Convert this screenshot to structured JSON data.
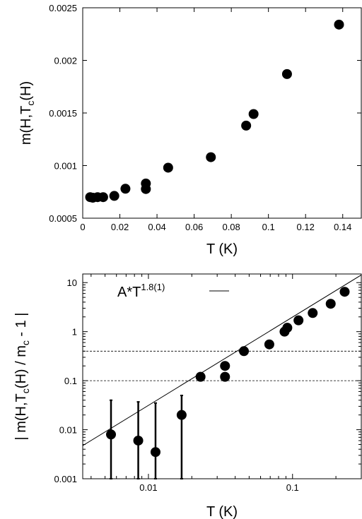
{
  "chart_data": [
    {
      "type": "scatter",
      "xlabel": "T (K)",
      "ylabel": "m(H,T_c(H)",
      "xlim": [
        0,
        0.15
      ],
      "ylim": [
        0.0005,
        0.0025
      ],
      "x_ticks": [
        "0",
        "0.02",
        "0.04",
        "0.06",
        "0.08",
        "0.1",
        "0.12",
        "0.14"
      ],
      "y_ticks": [
        "0.0005",
        "0.001",
        "0.0015",
        "0.002",
        "0.0025"
      ],
      "series": [
        {
          "color": "#000000",
          "points": [
            {
              "x": 0.004,
              "y": 0.0007
            },
            {
              "x": 0.0055,
              "y": 0.000695
            },
            {
              "x": 0.008,
              "y": 0.0007
            },
            {
              "x": 0.011,
              "y": 0.0007
            },
            {
              "x": 0.017,
              "y": 0.000712
            },
            {
              "x": 0.023,
              "y": 0.00078
            },
            {
              "x": 0.034,
              "y": 0.000777
            },
            {
              "x": 0.034,
              "y": 0.00083
            },
            {
              "x": 0.046,
              "y": 0.00098
            },
            {
              "x": 0.069,
              "y": 0.00108
            },
            {
              "x": 0.088,
              "y": 0.00138
            },
            {
              "x": 0.092,
              "y": 0.00149
            },
            {
              "x": 0.11,
              "y": 0.00187
            },
            {
              "x": 0.138,
              "y": 0.00234
            }
          ]
        }
      ]
    },
    {
      "type": "scatter",
      "xlabel": "T (K)",
      "ylabel": "| m(H,T_c(H) / m_c - 1 |",
      "x_scale": "log",
      "y_scale": "log",
      "xlim": [
        0.0035,
        0.3
      ],
      "ylim": [
        0.001,
        15
      ],
      "x_ticks": [
        {
          "value": 0.01,
          "label": "0.01"
        },
        {
          "value": 0.1,
          "label": "0.1"
        }
      ],
      "y_ticks": [
        {
          "value": 0.001,
          "label": "0.001"
        },
        {
          "value": 0.01,
          "label": "0.01"
        },
        {
          "value": 0.1,
          "label": "0.1"
        },
        {
          "value": 1,
          "label": "1"
        },
        {
          "value": 10,
          "label": "10"
        }
      ],
      "legend": {
        "label_base": "A*T",
        "label_exp": "1.8(1)",
        "position": "top-center"
      },
      "fit": {
        "amplitude": 125,
        "exponent": 1.8
      },
      "hlines": [
        0.1,
        0.4
      ],
      "series": [
        {
          "color": "#000000",
          "points": [
            {
              "x": 0.0055,
              "y": 0.008,
              "ylow": 0.001,
              "yhigh": 0.04
            },
            {
              "x": 0.0085,
              "y": 0.006,
              "ylow": 0.001,
              "yhigh": 0.037
            },
            {
              "x": 0.0112,
              "y": 0.0035,
              "ylow": 0.001,
              "yhigh": 0.035
            },
            {
              "x": 0.017,
              "y": 0.02,
              "ylow": 0.001,
              "yhigh": 0.05
            },
            {
              "x": 0.023,
              "y": 0.12,
              "ylow": 0.1,
              "yhigh": 0.145
            },
            {
              "x": 0.034,
              "y": 0.12,
              "ylow": 0.1,
              "yhigh": 0.145
            },
            {
              "x": 0.034,
              "y": 0.2
            },
            {
              "x": 0.046,
              "y": 0.4
            },
            {
              "x": 0.069,
              "y": 0.55
            },
            {
              "x": 0.088,
              "y": 1.0
            },
            {
              "x": 0.092,
              "y": 1.2
            },
            {
              "x": 0.11,
              "y": 1.7
            },
            {
              "x": 0.138,
              "y": 2.4
            },
            {
              "x": 0.184,
              "y": 3.7
            },
            {
              "x": 0.23,
              "y": 6.5
            }
          ]
        }
      ]
    }
  ]
}
